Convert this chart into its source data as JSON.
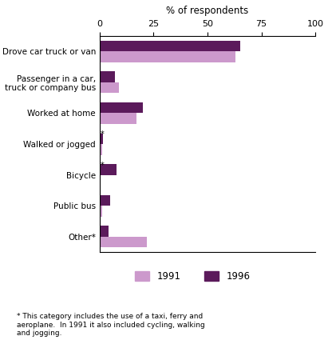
{
  "title": "% of respondents",
  "categories": [
    "Drove car truck or van",
    "Passenger in a car,\ntruck or company bus",
    "Worked at home",
    "Walked or jogged",
    "Bicycle",
    "Public bus",
    "Other*"
  ],
  "values_1991": [
    63,
    9,
    17,
    1.0,
    0.5,
    1.0,
    22
  ],
  "values_1996": [
    65,
    7,
    20,
    1.5,
    8,
    5,
    4
  ],
  "color_1991": "#cc99cc",
  "color_1996": "#5b1a5b",
  "xlim": [
    0,
    100
  ],
  "xticks": [
    0,
    25,
    50,
    75,
    100
  ],
  "legend_labels": [
    "1991",
    "1996"
  ],
  "footnote": "* This category includes the use of a taxi, ferry and\naeroplane.  In 1991 it also included cycling, walking\nand jogging.",
  "bar_height": 0.35,
  "figsize": [
    4.16,
    4.5
  ],
  "dpi": 100
}
